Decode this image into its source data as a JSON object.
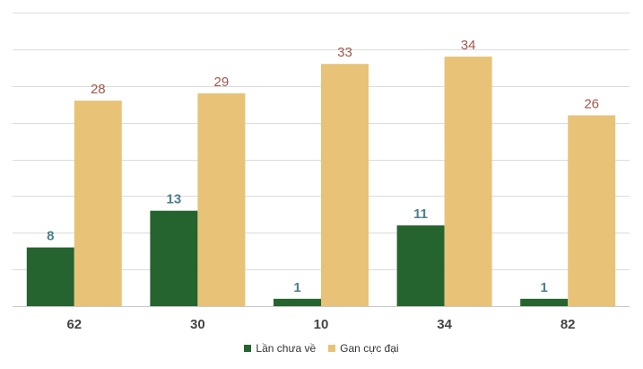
{
  "chart_data": {
    "type": "bar",
    "categories": [
      "62",
      "30",
      "10",
      "34",
      "82"
    ],
    "series": [
      {
        "name": "Lần chưa về",
        "values": [
          8,
          13,
          1,
          11,
          1
        ],
        "color": "#25632f",
        "label_color": "#4d7f8f"
      },
      {
        "name": "Gan cực đại",
        "values": [
          28,
          29,
          33,
          34,
          26
        ],
        "color": "#e8c377",
        "label_color": "#a0574b"
      }
    ],
    "ylim": [
      0,
      40
    ],
    "grid": true,
    "legend": "bottom-center"
  }
}
